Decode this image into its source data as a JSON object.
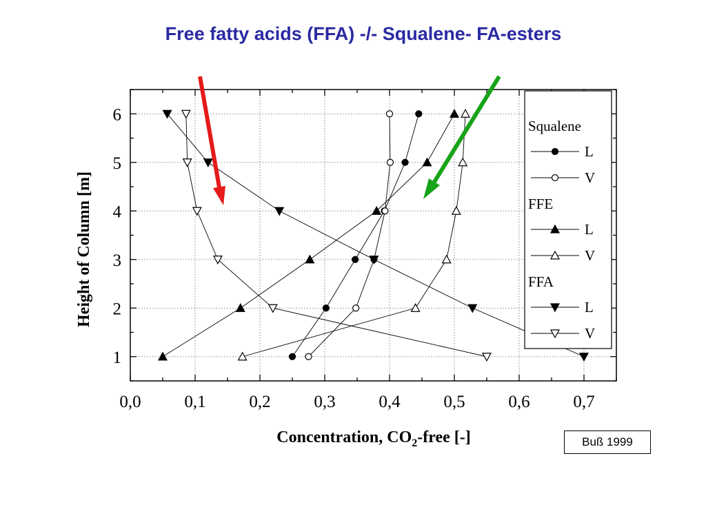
{
  "title": "Free fatty acids (FFA) -/- Squalene- FA-esters",
  "citation": "Buß  1999",
  "colors": {
    "title": "#2a2aa3",
    "arrow_red": "#e51a1a",
    "arrow_green": "#19a319"
  },
  "chart_data": {
    "type": "line",
    "xlabel_main": "Concentration, CO",
    "xlabel_sub": "2",
    "xlabel_tail": "-free [-]",
    "ylabel": "Height of Column [m]",
    "xlim": [
      0,
      0.75
    ],
    "ylim": [
      0.5,
      6.5
    ],
    "xticks": [
      0.0,
      0.1,
      0.2,
      0.3,
      0.4,
      0.5,
      0.6,
      0.7
    ],
    "xtick_labels": [
      "0,0",
      "0,1",
      "0,2",
      "0,3",
      "0,4",
      "0,5",
      "0,6",
      "0,7"
    ],
    "yticks": [
      1,
      2,
      3,
      4,
      5,
      6
    ],
    "ytick_labels": [
      "1",
      "2",
      "3",
      "4",
      "5",
      "6"
    ],
    "grid": "dotted",
    "legend": {
      "placement": "right",
      "groups": [
        {
          "title": "Squalene",
          "entries": [
            {
              "label": "L",
              "series": 0
            },
            {
              "label": "V",
              "series": 1
            }
          ]
        },
        {
          "title": "FFE",
          "entries": [
            {
              "label": "L",
              "series": 2
            },
            {
              "label": "V",
              "series": 3
            }
          ]
        },
        {
          "title": "FFA",
          "entries": [
            {
              "label": "L",
              "series": 4
            },
            {
              "label": "V",
              "series": 5
            }
          ]
        }
      ]
    },
    "series": [
      {
        "marker": "circle",
        "filled": true,
        "points": [
          [
            0.25,
            1
          ],
          [
            0.302,
            2
          ],
          [
            0.347,
            3
          ],
          [
            0.392,
            4
          ],
          [
            0.424,
            5
          ],
          [
            0.445,
            6
          ]
        ]
      },
      {
        "marker": "circle",
        "filled": false,
        "points": [
          [
            0.275,
            1
          ],
          [
            0.348,
            2
          ],
          [
            0.376,
            3
          ],
          [
            0.393,
            4
          ],
          [
            0.401,
            5
          ],
          [
            0.4,
            6
          ]
        ]
      },
      {
        "marker": "triangle-up",
        "filled": true,
        "points": [
          [
            0.05,
            1
          ],
          [
            0.17,
            2
          ],
          [
            0.277,
            3
          ],
          [
            0.38,
            4
          ],
          [
            0.458,
            5
          ],
          [
            0.5,
            6
          ]
        ]
      },
      {
        "marker": "triangle-up",
        "filled": false,
        "points": [
          [
            0.173,
            1
          ],
          [
            0.44,
            2
          ],
          [
            0.488,
            3
          ],
          [
            0.503,
            4
          ],
          [
            0.513,
            5
          ],
          [
            0.517,
            6
          ]
        ]
      },
      {
        "marker": "triangle-down",
        "filled": true,
        "points": [
          [
            0.7,
            1
          ],
          [
            0.528,
            2
          ],
          [
            0.376,
            3
          ],
          [
            0.23,
            4
          ],
          [
            0.12,
            5
          ],
          [
            0.057,
            6
          ]
        ]
      },
      {
        "marker": "triangle-down",
        "filled": false,
        "points": [
          [
            0.55,
            1
          ],
          [
            0.22,
            2
          ],
          [
            0.135,
            3
          ],
          [
            0.103,
            4
          ],
          [
            0.088,
            5
          ],
          [
            0.086,
            6
          ]
        ]
      }
    ]
  }
}
